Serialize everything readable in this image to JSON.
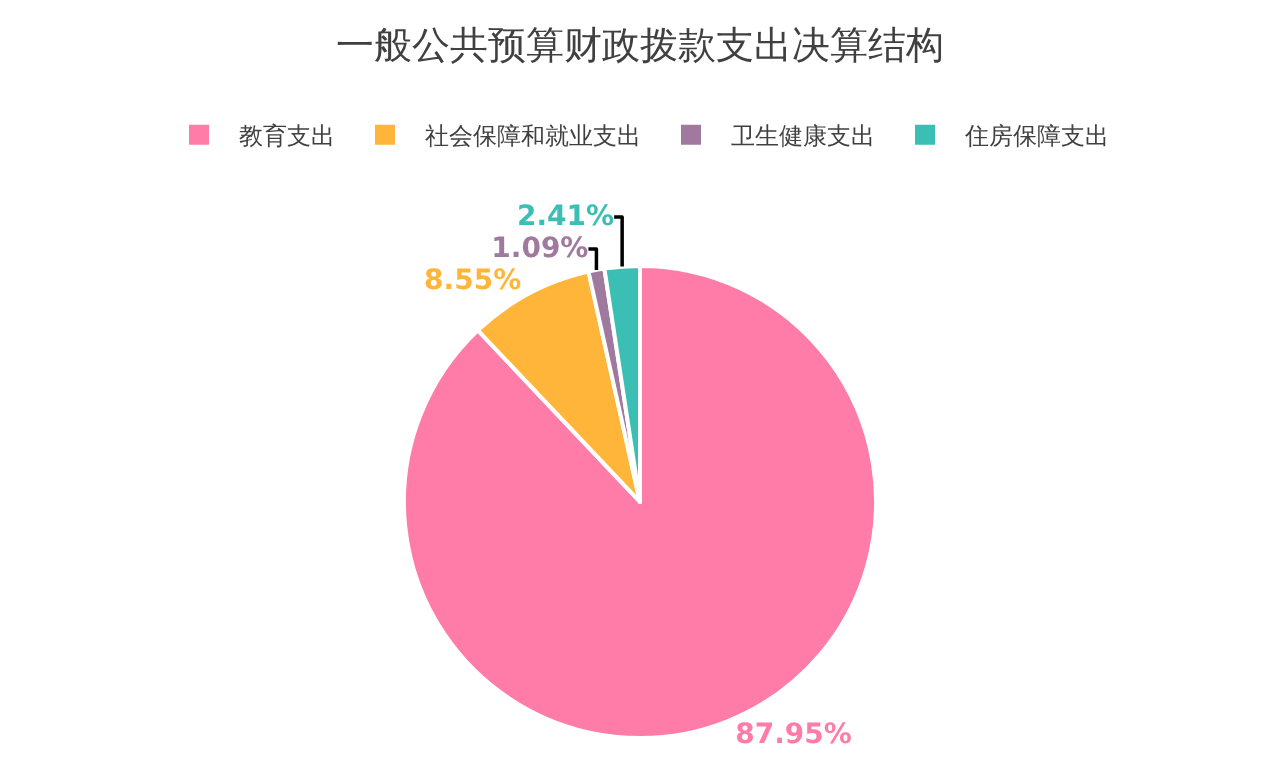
{
  "chart_data": {
    "type": "pie",
    "title": "一般公共预算财政拨款支出决算结构",
    "categories": [
      "教育支出",
      "社会保障和就业支出",
      "卫生健康支出",
      "住房保障支出"
    ],
    "values": [
      87.95,
      8.55,
      1.09,
      2.41
    ],
    "colors": [
      "#ff7ca8",
      "#ffb53a",
      "#a07a9e",
      "#3bbfb5"
    ],
    "value_labels": [
      "87.95%",
      "8.55%",
      "1.09%",
      "2.41%"
    ],
    "legend": "top"
  }
}
